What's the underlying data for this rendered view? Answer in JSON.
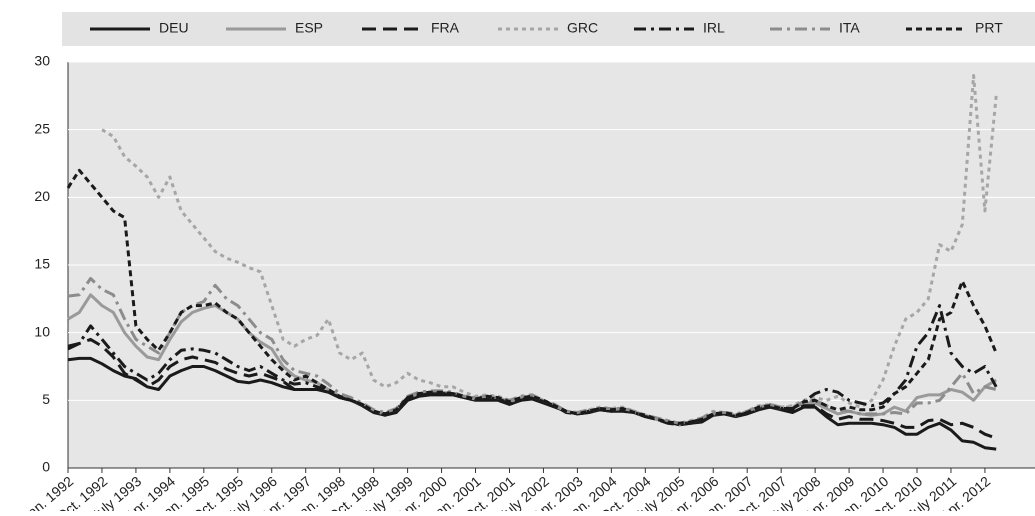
{
  "chart_data": {
    "type": "line",
    "categories": [
      "Jan. 1992",
      null,
      null,
      "Oct. 1992",
      null,
      null,
      "July 1993",
      null,
      null,
      "Apr. 1994",
      null,
      null,
      "Jan. 1995",
      null,
      null,
      "Oct. 1995",
      null,
      null,
      "July 1996",
      null,
      null,
      "Apr. 1997",
      null,
      null,
      "Jan. 1998",
      null,
      null,
      "Oct. 1998",
      null,
      null,
      "July 1999",
      null,
      null,
      "Apr. 2000",
      null,
      null,
      "Jan. 2001",
      null,
      null,
      "Oct. 2001",
      null,
      null,
      "July 2002",
      null,
      null,
      "Apr. 2003",
      null,
      null,
      "Jan. 2004",
      null,
      null,
      "Oct. 2004",
      null,
      null,
      "July 2005",
      null,
      null,
      "Apr. 2006",
      null,
      null,
      "Jan. 2007",
      null,
      null,
      "Oct. 2007",
      null,
      null,
      "July 2008",
      null,
      null,
      "Apr. 2009",
      null,
      null,
      "Jan. 2010",
      null,
      null,
      "Oct. 2010",
      null,
      null,
      "July 2011",
      null,
      null,
      "Apr. 2012",
      null
    ],
    "series": [
      {
        "name": "DEU",
        "color": "#1a1a1a",
        "dash": "solid",
        "values": [
          8,
          8.1,
          8.1,
          7.7,
          7.2,
          6.8,
          6.6,
          6.0,
          5.8,
          6.8,
          7.2,
          7.5,
          7.5,
          7.2,
          6.8,
          6.4,
          6.3,
          6.5,
          6.3,
          6.0,
          5.8,
          5.8,
          5.8,
          5.6,
          5.2,
          5.0,
          4.6,
          4.1,
          3.9,
          4.1,
          5.0,
          5.3,
          5.4,
          5.4,
          5.4,
          5.2,
          5.0,
          5.0,
          5.0,
          4.7,
          5.0,
          5.1,
          4.8,
          4.5,
          4.2,
          4.0,
          4.1,
          4.3,
          4.2,
          4.2,
          4.1,
          3.8,
          3.6,
          3.4,
          3.2,
          3.3,
          3.4,
          3.9,
          4.0,
          3.8,
          4.0,
          4.3,
          4.5,
          4.3,
          4.1,
          4.5,
          4.5,
          3.8,
          3.2,
          3.3,
          3.3,
          3.3,
          3.2,
          3.0,
          2.5,
          2.5,
          3.0,
          3.3,
          2.8,
          2.0,
          1.9,
          1.5,
          1.4
        ]
      },
      {
        "name": "ESP",
        "color": "#9a9a9a",
        "dash": "solid",
        "values": [
          11,
          11.5,
          12.8,
          12,
          11.5,
          10,
          9,
          8.2,
          8,
          9.5,
          10.8,
          11.5,
          11.8,
          12,
          11.5,
          11,
          10,
          9.3,
          8.8,
          7.5,
          6.8,
          6.5,
          6.3,
          5.8,
          5.3,
          5.0,
          4.7,
          4.2,
          4.0,
          4.3,
          5.2,
          5.5,
          5.6,
          5.6,
          5.5,
          5.3,
          5.1,
          5.3,
          5.2,
          4.9,
          5.2,
          5.3,
          5.0,
          4.6,
          4.2,
          4.0,
          4.2,
          4.4,
          4.3,
          4.4,
          4.1,
          3.9,
          3.6,
          3.4,
          3.2,
          3.4,
          3.6,
          4.0,
          4.0,
          3.9,
          4.1,
          4.5,
          4.6,
          4.4,
          4.4,
          4.8,
          4.8,
          4.4,
          4.0,
          4.2,
          4.0,
          3.9,
          4.0,
          4.5,
          4.2,
          5.2,
          5.4,
          5.4,
          5.8,
          5.6,
          5.0,
          6.0,
          6.5
        ]
      },
      {
        "name": "FRA",
        "color": "#1a1a1a",
        "dash": "long",
        "values": [
          8.8,
          9.2,
          9.5,
          9,
          8.2,
          7.0,
          6.5,
          6.0,
          6.5,
          7.5,
          8.0,
          8.2,
          8.0,
          7.8,
          7.3,
          7.0,
          6.8,
          7.0,
          6.7,
          6.4,
          5.8,
          5.8,
          5.8,
          5.6,
          5.2,
          5.0,
          4.7,
          4.2,
          3.9,
          4.2,
          5.1,
          5.4,
          5.5,
          5.5,
          5.4,
          5.2,
          5.0,
          5.1,
          5.0,
          4.7,
          5.0,
          5.2,
          4.9,
          4.6,
          4.1,
          4.0,
          4.1,
          4.3,
          4.2,
          4.3,
          4.1,
          3.8,
          3.6,
          3.3,
          3.2,
          3.3,
          3.5,
          4.0,
          4.0,
          3.8,
          4.1,
          4.4,
          4.5,
          4.4,
          4.2,
          4.6,
          4.6,
          4.0,
          3.6,
          3.8,
          3.6,
          3.6,
          3.5,
          3.3,
          3.0,
          3.0,
          3.5,
          3.6,
          3.2,
          3.3,
          3.0,
          2.5,
          2.2
        ]
      },
      {
        "name": "GRC",
        "color": "#a6a6a6",
        "dash": "dot",
        "values": [
          null,
          null,
          null,
          25,
          24.5,
          23,
          22.3,
          21.5,
          20,
          21.5,
          19,
          18,
          17,
          16,
          15.5,
          15.2,
          14.8,
          14.5,
          12,
          9.5,
          9,
          9.5,
          9.8,
          11,
          8.5,
          8,
          8.5,
          6.5,
          6.0,
          6.3,
          7.0,
          6.5,
          6.3,
          6.0,
          6.0,
          5.6,
          5.3,
          5.4,
          5.3,
          5.0,
          5.3,
          5.4,
          5.0,
          4.6,
          4.2,
          4.1,
          4.3,
          4.5,
          4.4,
          4.5,
          4.2,
          3.9,
          3.7,
          3.5,
          3.3,
          3.5,
          3.7,
          4.2,
          4.1,
          3.9,
          4.2,
          4.6,
          4.7,
          4.5,
          4.6,
          5.0,
          5.2,
          5.0,
          5.3,
          4.8,
          4.5,
          5.0,
          6.5,
          9.0,
          11.0,
          11.5,
          12.5,
          16.5,
          16,
          18,
          29,
          19,
          27.5
        ]
      },
      {
        "name": "IRL",
        "color": "#1a1a1a",
        "dash": "dashdot",
        "values": [
          9.0,
          9.2,
          10.5,
          9.5,
          8.5,
          7.5,
          7.0,
          6.5,
          7.0,
          8.0,
          8.7,
          8.8,
          8.7,
          8.5,
          8.0,
          7.5,
          7.2,
          7.5,
          7.0,
          6.5,
          6.2,
          6.3,
          6.0,
          5.7,
          5.2,
          5.0,
          4.7,
          4.2,
          4.0,
          4.3,
          5.2,
          5.5,
          5.6,
          5.5,
          5.5,
          5.3,
          5.1,
          5.2,
          5.1,
          4.8,
          5.1,
          5.2,
          4.9,
          4.6,
          4.2,
          4.0,
          4.2,
          4.4,
          4.3,
          4.3,
          4.1,
          3.8,
          3.6,
          3.4,
          3.2,
          3.4,
          3.6,
          4.0,
          4.0,
          3.8,
          4.1,
          4.4,
          4.6,
          4.4,
          4.4,
          4.9,
          5.5,
          5.8,
          5.6,
          5.0,
          4.8,
          4.6,
          4.8,
          5.5,
          6.5,
          9.0,
          10,
          12,
          8.5,
          7.5,
          7.0,
          7.5,
          6.0
        ]
      },
      {
        "name": "ITA",
        "color": "#8c8c8c",
        "dash": "dashdot",
        "values": [
          12.7,
          12.8,
          14,
          13.2,
          12.8,
          11,
          9.5,
          9,
          8.5,
          10,
          11.5,
          12,
          12.3,
          13.5,
          12.5,
          12,
          11,
          10,
          9.5,
          8,
          7.2,
          7,
          6.8,
          6.2,
          5.5,
          5.2,
          4.8,
          4.3,
          4.1,
          4.4,
          5.3,
          5.6,
          5.7,
          5.7,
          5.6,
          5.3,
          5.2,
          5.3,
          5.2,
          5.0,
          5.3,
          5.4,
          5.0,
          4.7,
          4.2,
          4.1,
          4.3,
          4.4,
          4.4,
          4.4,
          4.2,
          3.9,
          3.7,
          3.5,
          3.3,
          3.4,
          3.7,
          4.1,
          4.1,
          4.0,
          4.2,
          4.5,
          4.7,
          4.5,
          4.5,
          4.9,
          5.0,
          4.6,
          4.3,
          4.2,
          4.0,
          4.0,
          4.0,
          4.1,
          4.0,
          4.8,
          4.8,
          5.0,
          6.0,
          7.0,
          5.5,
          6.0,
          5.8
        ]
      },
      {
        "name": "PRT",
        "color": "#1a1a1a",
        "dash": "short",
        "values": [
          20.7,
          22,
          21,
          20,
          19,
          18.5,
          10.5,
          9.5,
          8.7,
          10,
          11.5,
          12,
          12,
          12.2,
          11.5,
          11,
          10,
          9,
          8,
          7.2,
          6.5,
          6.8,
          6.3,
          5.8,
          5.3,
          5.0,
          4.7,
          4.2,
          4.0,
          4.3,
          5.2,
          5.5,
          5.6,
          5.6,
          5.5,
          5.3,
          5.1,
          5.3,
          5.2,
          4.9,
          5.2,
          5.3,
          5.0,
          4.6,
          4.2,
          4.0,
          4.2,
          4.4,
          4.3,
          4.4,
          4.1,
          3.9,
          3.6,
          3.4,
          3.3,
          3.4,
          3.6,
          4.0,
          4.1,
          3.9,
          4.1,
          4.5,
          4.6,
          4.4,
          4.4,
          4.9,
          5.0,
          4.6,
          4.3,
          4.5,
          4.3,
          4.3,
          4.5,
          5.5,
          6.0,
          7.0,
          8.0,
          11.0,
          11.5,
          13.8,
          12.0,
          10.5,
          8.5
        ]
      }
    ],
    "ylim": [
      0,
      30
    ],
    "yticks": [
      0,
      5,
      10,
      15,
      20,
      25,
      30
    ],
    "grid": true
  }
}
